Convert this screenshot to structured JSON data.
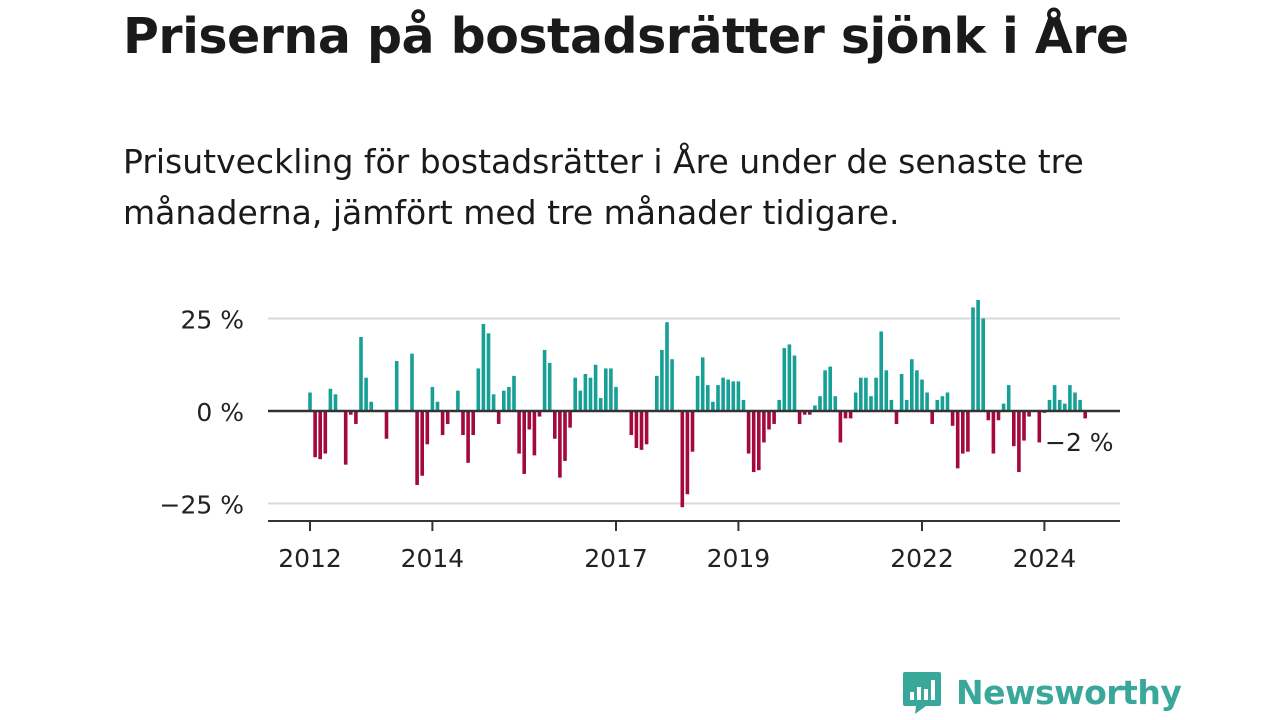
{
  "title": "Priserna på bostadsrätter sjönk i Åre",
  "subtitle": "Prisutveckling för bostadsrätter i Åre under de senaste tre månaderna, jämfört med tre månader tidigare.",
  "brand": {
    "name": "Newsworthy"
  },
  "colors": {
    "positive": "#16a096",
    "negative": "#a3083e",
    "grid": "#d9d9d9",
    "axis": "#333333",
    "brand": "#39a89a"
  },
  "chart_data": {
    "type": "bar",
    "title": "",
    "xlabel": "",
    "ylabel": "",
    "x_start": "2012-01",
    "x_ticks": [
      "2012",
      "2014",
      "2017",
      "2019",
      "2022",
      "2024"
    ],
    "y_ticks": [
      "−25 %",
      "0 %",
      "25 %"
    ],
    "y_tick_values": [
      -25,
      0,
      25
    ],
    "ylim": [
      -30,
      30
    ],
    "last_value_label": "−2 %",
    "grid": true,
    "values": [
      5,
      -12.5,
      -13,
      -11.5,
      6,
      4.5,
      0,
      -14.5,
      -1,
      -3.5,
      20,
      9,
      2.5,
      0,
      0,
      -7.5,
      0,
      13.5,
      0,
      0,
      15.5,
      -20,
      -17.5,
      -9,
      6.5,
      2.5,
      -6.5,
      -3.5,
      0,
      5.5,
      -6.5,
      -14,
      -6.5,
      11.5,
      23.5,
      21,
      4.5,
      -3.5,
      5.5,
      6.5,
      9.5,
      -11.5,
      -17,
      -5,
      -12,
      -1.5,
      16.5,
      13,
      -7.5,
      -18,
      -13.5,
      -4.5,
      9,
      5.5,
      10,
      9,
      12.5,
      3.5,
      11.5,
      11.5,
      6.5,
      0,
      0,
      -6.5,
      -10,
      -10.5,
      -9,
      0,
      9.5,
      16.5,
      24,
      14,
      0,
      -26,
      -22.5,
      -11,
      9.5,
      14.5,
      7,
      2.5,
      7,
      9,
      8.5,
      8,
      8,
      3,
      -11.5,
      -16.5,
      -16,
      -8.5,
      -5,
      -3.5,
      3,
      17,
      18,
      15,
      -3.5,
      -1,
      -1,
      1.5,
      4,
      11,
      12,
      4,
      -8.5,
      -2,
      -2,
      5,
      9,
      9,
      4,
      9,
      21.5,
      11,
      3,
      -3.5,
      10,
      3,
      14,
      11,
      8.5,
      5,
      -3.5,
      3,
      4,
      5,
      -4,
      -15.5,
      -11.5,
      -11,
      28,
      30,
      25,
      -2.5,
      -11.5,
      -2.5,
      2,
      7,
      -9.5,
      -16.5,
      -8,
      -1.5,
      0,
      -8.5,
      -0.5,
      3,
      7,
      3,
      2,
      7,
      5,
      3,
      -2
    ]
  }
}
